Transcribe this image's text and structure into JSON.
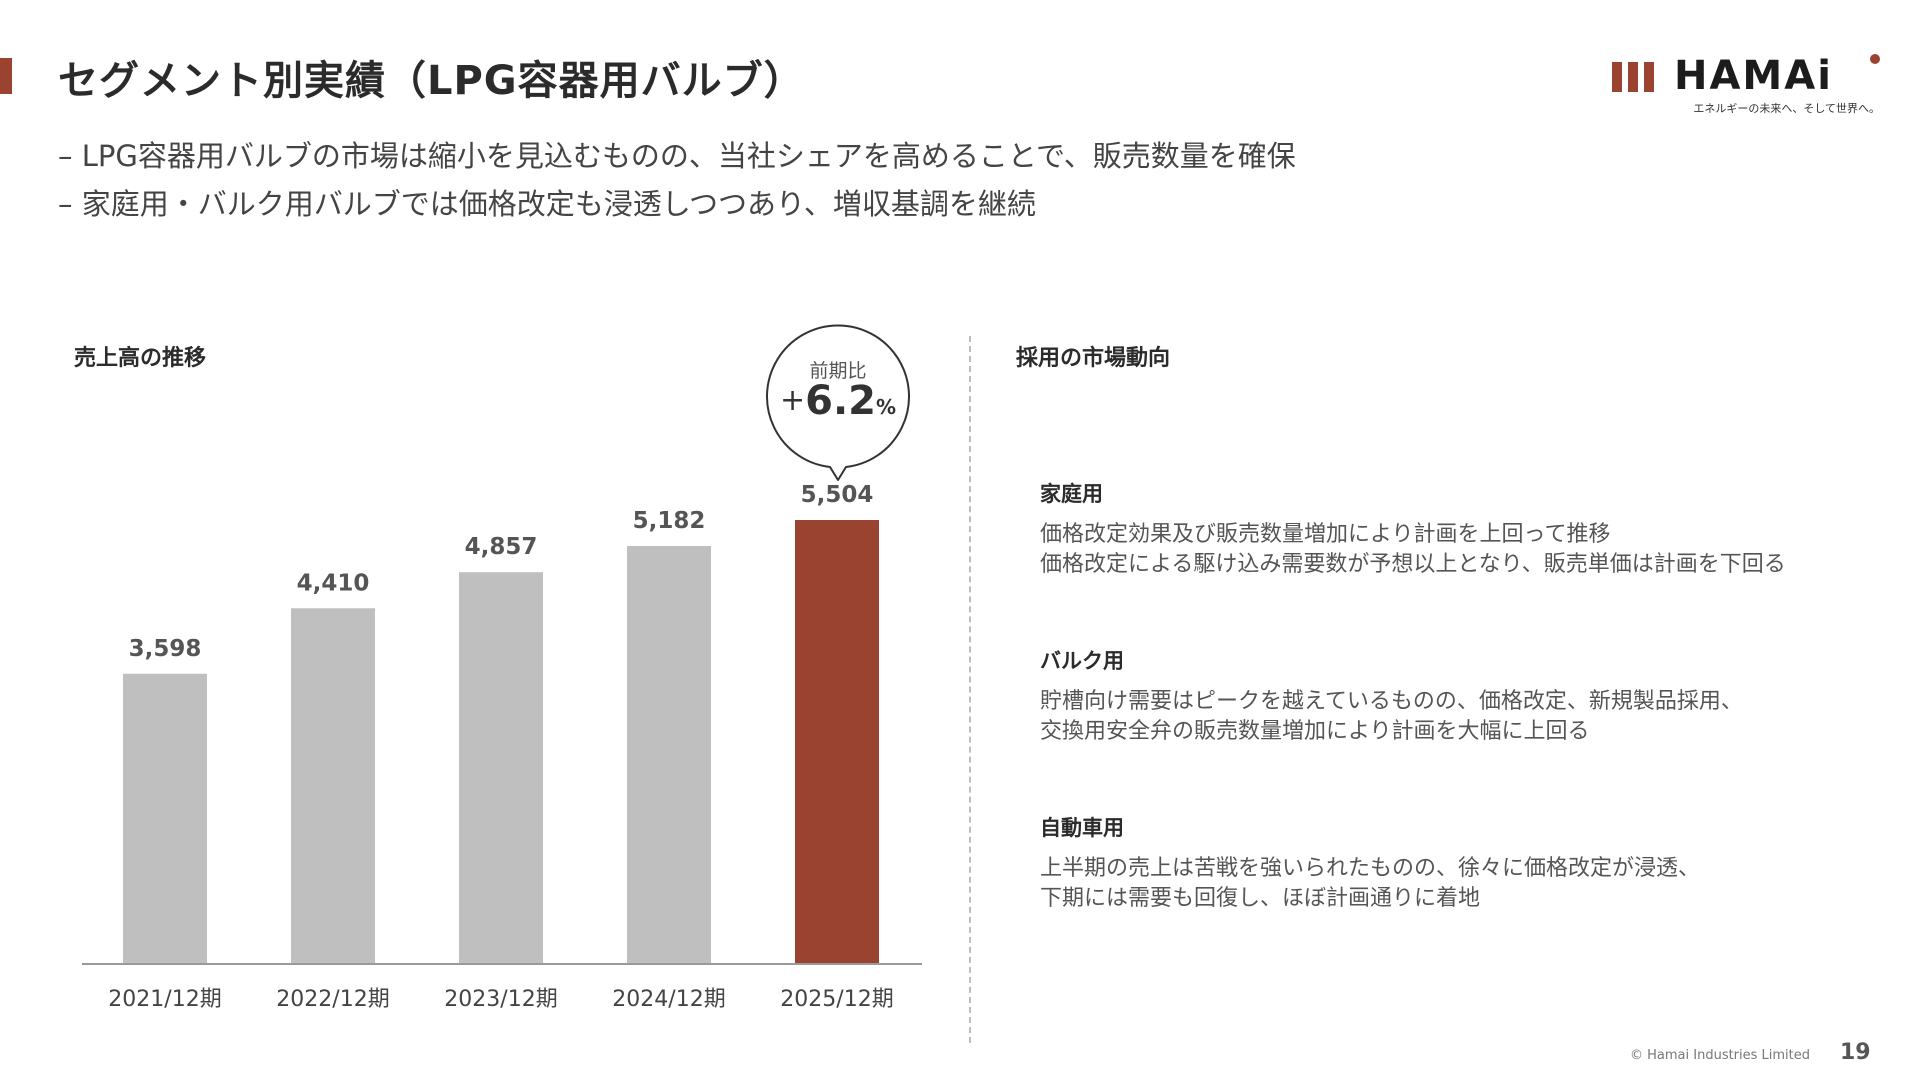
{
  "header": {
    "title": "セグメント別実績（LPG容器用バルブ）",
    "accent_color": "#9a4330"
  },
  "logo": {
    "wordmark": "HAMAi",
    "tagline": "エネルギーの未来へ、そして世界へ。"
  },
  "bullets": [
    "– LPG容器用バルブの市場は縮小を見込むものの、当社シェアを高めることで、販売数量を確保",
    "– 家庭用・バルク用バルブでは価格改定も浸透しつつあり、増収基調を継続"
  ],
  "left_panel": {
    "heading": "売上高の推移"
  },
  "callout": {
    "label": "前期比",
    "sign": "+",
    "value": "6.2",
    "unit": "%"
  },
  "chart_data": {
    "type": "bar",
    "title": "",
    "categories": [
      "2021/12期",
      "2022/12期",
      "2023/12期",
      "2024/12期",
      "2025/12期"
    ],
    "values": [
      3598,
      4410,
      4857,
      5182,
      5504
    ],
    "value_labels": [
      "3,598",
      "4,410",
      "4,857",
      "5,182",
      "5,504"
    ],
    "ylim": [
      0,
      6000
    ],
    "grid": false,
    "colors": {
      "default": "#bfbfbf",
      "highlight": "#9a4330",
      "axis": "#999999"
    },
    "highlight_index": 4
  },
  "right_panel": {
    "heading": "採用の市場動向",
    "sections": [
      {
        "title": "家庭用",
        "lines": [
          "価格改定効果及び販売数量増加により計画を上回って推移",
          "価格改定による駆け込み需要数が予想以上となり、販売単価は計画を下回る"
        ]
      },
      {
        "title": "バルク用",
        "lines": [
          "貯槽向け需要はピークを越えているものの、価格改定、新規製品採用、",
          "交換用安全弁の販売数量増加により計画を大幅に上回る"
        ]
      },
      {
        "title": "自動車用",
        "lines": [
          "上半期の売上は苦戦を強いられたものの、徐々に価格改定が浸透、",
          "下期には需要も回復し、ほぼ計画通りに着地"
        ]
      }
    ]
  },
  "footer": {
    "copyright": "© Hamai Industries Limited",
    "page": "19"
  }
}
